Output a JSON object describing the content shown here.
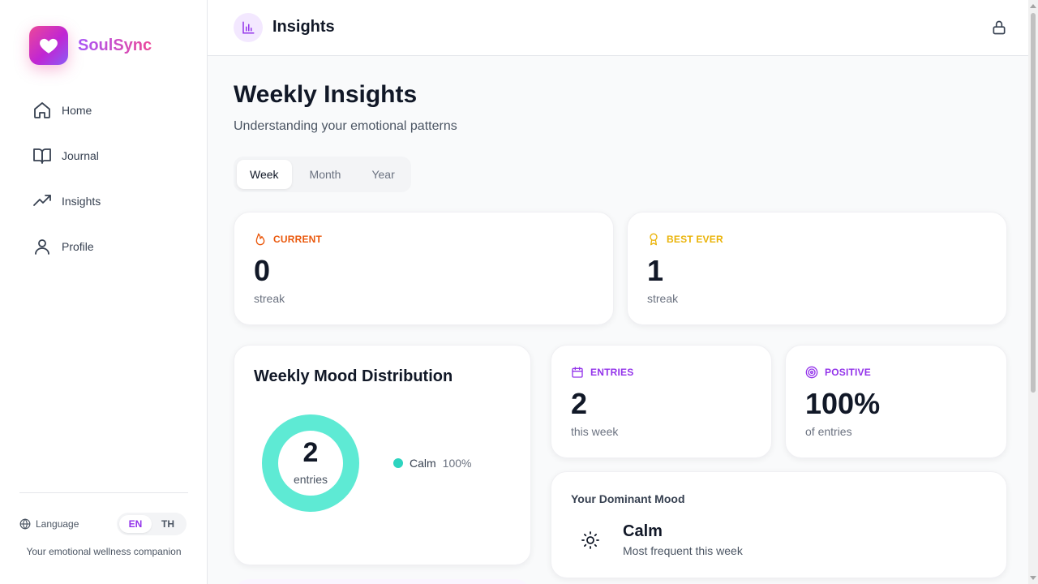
{
  "app": {
    "name": "SoulSync",
    "tagline": "Your emotional wellness companion"
  },
  "sidebar": {
    "items": [
      {
        "label": "Home",
        "icon": "home-icon"
      },
      {
        "label": "Journal",
        "icon": "book-open-icon"
      },
      {
        "label": "Insights",
        "icon": "trending-up-icon"
      },
      {
        "label": "Profile",
        "icon": "user-icon"
      }
    ],
    "language_label": "Language",
    "languages": [
      "EN",
      "TH"
    ],
    "active_language": "EN"
  },
  "header": {
    "title": "Insights"
  },
  "main": {
    "title": "Weekly Insights",
    "subtitle": "Understanding your emotional patterns",
    "tabs": [
      {
        "label": "Week",
        "active": true
      },
      {
        "label": "Month",
        "active": false
      },
      {
        "label": "Year",
        "active": false
      }
    ],
    "current_streak": {
      "label": "CURRENT",
      "value": "0",
      "caption": "streak",
      "color": "#ea580c"
    },
    "best_streak": {
      "label": "BEST EVER",
      "value": "1",
      "caption": "streak",
      "color": "#eab308"
    },
    "entries": {
      "label": "ENTRIES",
      "value": "2",
      "caption": "this week",
      "color": "#9333ea"
    },
    "positive": {
      "label": "POSITIVE",
      "value": "100%",
      "caption": "of entries",
      "color": "#9333ea"
    },
    "distribution": {
      "title": "Weekly Mood Distribution",
      "center_value": "2",
      "center_label": "entries",
      "legend": [
        {
          "name": "Calm",
          "pct": "100%",
          "color": "#2dd4bf"
        }
      ]
    },
    "dominant": {
      "title": "Your Dominant Mood",
      "mood": "Calm",
      "description": "Most frequent this week",
      "icon": "sun-icon"
    }
  },
  "colors": {
    "accent": "#9333ea",
    "brand_pink": "#ec4899",
    "calm": "#5eead4"
  }
}
